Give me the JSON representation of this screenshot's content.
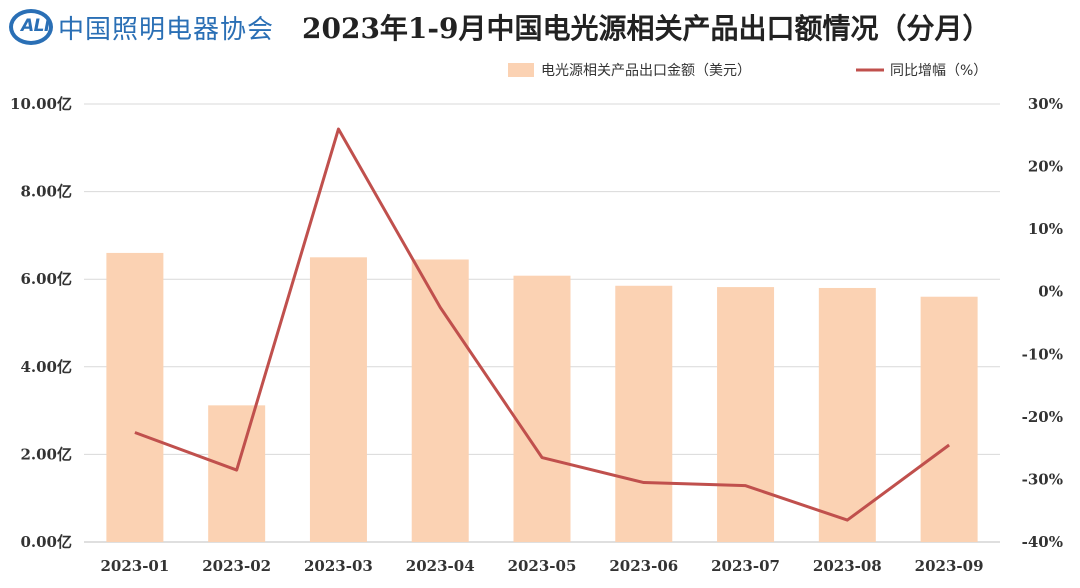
{
  "header": {
    "logo_abbr": "ALI",
    "logo_name": "中国照明电器协会",
    "title": "2023年1-9月中国电光源相关产品出口额情况（分月）"
  },
  "chart_data": {
    "type": "bar+line",
    "categories": [
      "2023-01",
      "2023-02",
      "2023-03",
      "2023-04",
      "2023-05",
      "2023-06",
      "2023-07",
      "2023-08",
      "2023-09"
    ],
    "series": [
      {
        "name": "电光源相关产品出口金额（美元）",
        "type": "bar",
        "axis": "left",
        "color": "#fbd2b3",
        "values": [
          6.6,
          3.12,
          6.5,
          6.45,
          6.08,
          5.85,
          5.82,
          5.8,
          5.6
        ]
      },
      {
        "name": "同比增幅（%）",
        "type": "line",
        "axis": "right",
        "color": "#c0504d",
        "values": [
          -22.5,
          -28.5,
          26.0,
          -2.5,
          -26.5,
          -30.5,
          -31.0,
          -36.5,
          -24.5
        ]
      }
    ],
    "left_axis": {
      "ylim": [
        0,
        10
      ],
      "ticks": [
        0,
        2,
        4,
        6,
        8,
        10
      ],
      "tick_labels": [
        "0.00亿",
        "2.00亿",
        "4.00亿",
        "6.00亿",
        "8.00亿",
        "10.00亿"
      ]
    },
    "right_axis": {
      "ylim": [
        -40,
        30
      ],
      "ticks": [
        -40,
        -30,
        -20,
        -10,
        0,
        10,
        20,
        30
      ],
      "tick_labels": [
        "-40%",
        "-30%",
        "-20%",
        "-10%",
        "0%",
        "10%",
        "20%",
        "30%"
      ]
    },
    "grid": true,
    "legend_position": "top-right"
  }
}
